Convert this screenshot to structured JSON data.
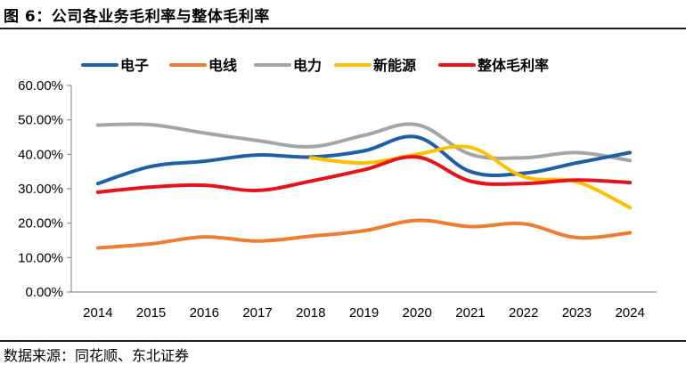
{
  "figure": {
    "title": "图 6：公司各业务毛利率与整体毛利率",
    "source": "数据来源：同花顺、东北证券"
  },
  "chart_data": {
    "type": "line",
    "title": "",
    "xlabel": "",
    "ylabel": "",
    "ylim": [
      0,
      60
    ],
    "y_ticks": [
      "0.00%",
      "10.00%",
      "20.00%",
      "30.00%",
      "40.00%",
      "50.00%",
      "60.00%"
    ],
    "y_tick_values": [
      0,
      10,
      20,
      30,
      40,
      50,
      60
    ],
    "grid": false,
    "legend_position": "top",
    "categories": [
      "2014",
      "2015",
      "2016",
      "2017",
      "2018",
      "2019",
      "2020",
      "2021",
      "2022",
      "2023",
      "2024"
    ],
    "series": [
      {
        "name": "电子",
        "color": "#1f5fa8",
        "values": [
          31.5,
          36.5,
          38.0,
          39.8,
          39.2,
          41.0,
          45.0,
          35.0,
          34.5,
          37.5,
          40.5
        ]
      },
      {
        "name": "电线",
        "color": "#ed7d31",
        "values": [
          12.8,
          14.0,
          16.0,
          14.8,
          16.2,
          17.8,
          20.8,
          19.0,
          19.8,
          15.8,
          17.2
        ]
      },
      {
        "name": "电力",
        "color": "#a5a5a5",
        "values": [
          48.5,
          48.6,
          46.2,
          44.0,
          42.2,
          45.5,
          48.6,
          40.0,
          39.0,
          40.5,
          38.2
        ]
      },
      {
        "name": "新能源",
        "color": "#ffc000",
        "values": [
          null,
          null,
          null,
          null,
          39.0,
          37.5,
          40.0,
          42.0,
          33.5,
          32.0,
          24.5
        ]
      },
      {
        "name": "整体毛利率",
        "color": "#e8121c",
        "values": [
          29.0,
          30.5,
          31.0,
          29.5,
          32.2,
          35.5,
          39.2,
          32.2,
          31.5,
          32.5,
          31.8
        ]
      }
    ]
  }
}
